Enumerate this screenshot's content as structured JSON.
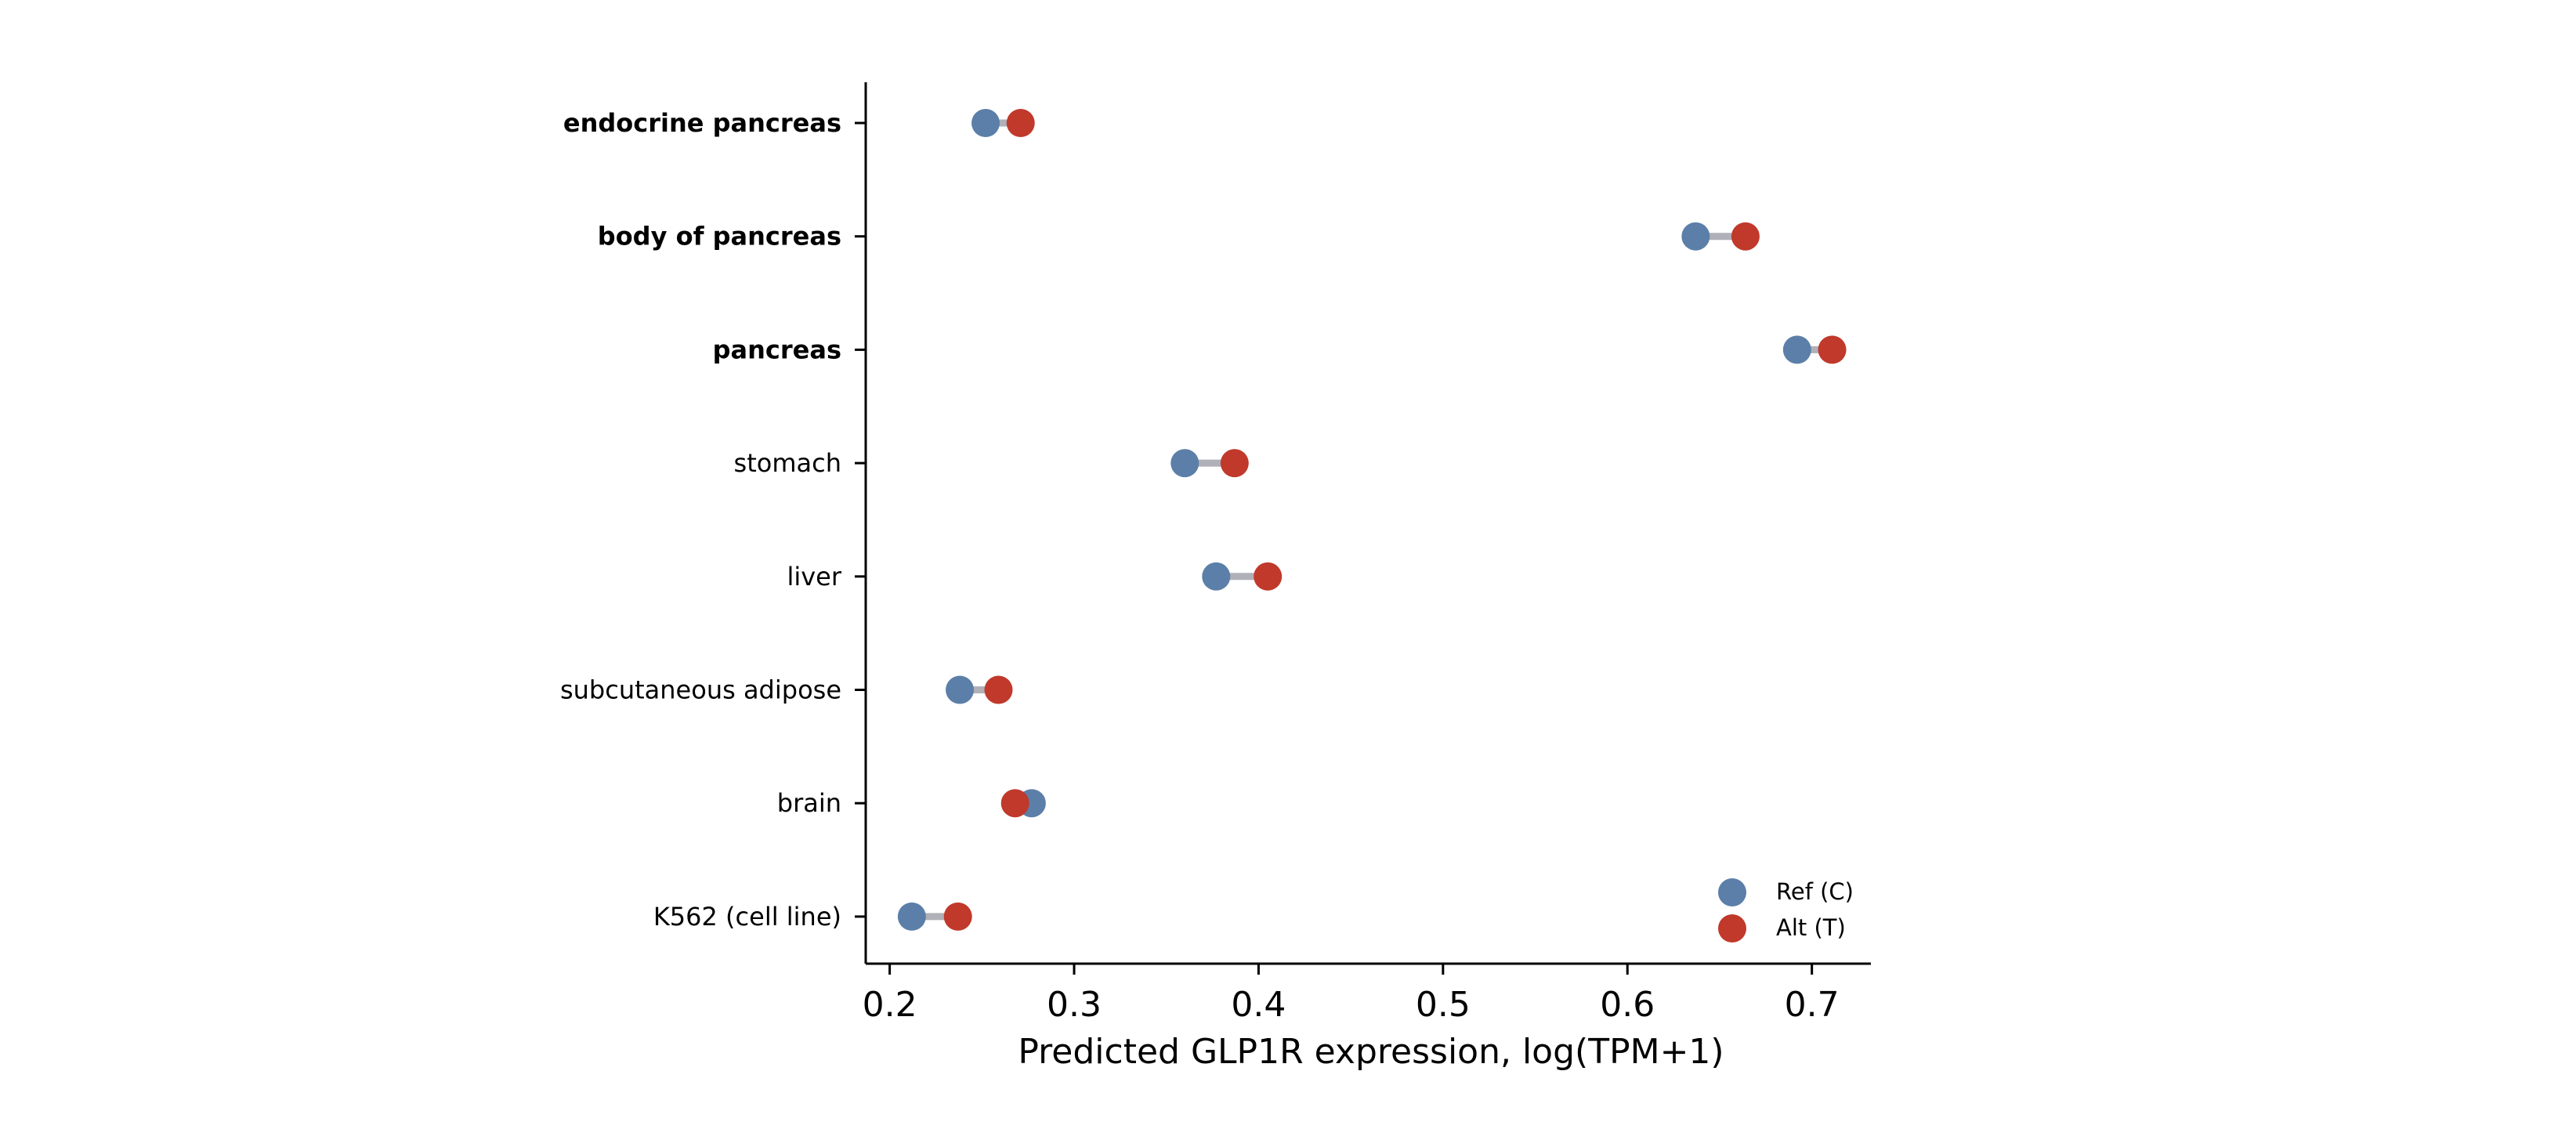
{
  "chart_data": {
    "type": "scatter",
    "style": "dumbbell",
    "title": "",
    "xlabel": "Predicted GLP1R expression, log(TPM+1)",
    "ylabel": "",
    "xlim": [
      0.187,
      0.732
    ],
    "xticks": [
      0.2,
      0.3,
      0.4,
      0.5,
      0.6,
      0.7
    ],
    "xtick_labels": [
      "0.2",
      "0.3",
      "0.4",
      "0.5",
      "0.6",
      "0.7"
    ],
    "grid": false,
    "legend_position": "lower-right",
    "categories": [
      "endocrine pancreas",
      "body of pancreas",
      "pancreas",
      "stomach",
      "liver",
      "subcutaneous adipose",
      "brain",
      "K562 (cell line)"
    ],
    "bold_categories": [
      "endocrine pancreas",
      "body of pancreas",
      "pancreas"
    ],
    "series": [
      {
        "name": "Ref (C)",
        "color": "#5b7fa8",
        "values": [
          0.252,
          0.637,
          0.692,
          0.36,
          0.377,
          0.238,
          0.277,
          0.212
        ]
      },
      {
        "name": "Alt (T)",
        "color": "#c0392b",
        "values": [
          0.271,
          0.664,
          0.711,
          0.387,
          0.405,
          0.259,
          0.268,
          0.237
        ]
      }
    ],
    "connector_color": "#b0b0b8"
  }
}
